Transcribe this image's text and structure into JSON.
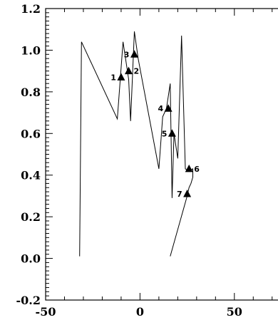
{
  "chart_data": {
    "type": "line",
    "title": "",
    "xlabel": "",
    "ylabel": "",
    "xlim": [
      -50,
      75
    ],
    "ylim": [
      -0.2,
      1.2
    ],
    "x_ticks": [
      -50,
      0,
      50
    ],
    "x_tick_labels": [
      "-50",
      "0",
      "50"
    ],
    "y_ticks": [
      -0.2,
      0.0,
      0.2,
      0.4,
      0.6,
      0.8,
      1.0,
      1.2
    ],
    "y_tick_labels": [
      "-0.2",
      "0.0",
      "0.2",
      "0.4",
      "0.6",
      "0.8",
      "1.0",
      "1.2"
    ],
    "grid": false,
    "series": [
      {
        "x": [
          -32,
          -31,
          -12,
          -9,
          -6,
          -5,
          -3,
          -1,
          10,
          12,
          14,
          16,
          17,
          18,
          20,
          22,
          24,
          26,
          28,
          28,
          27,
          26,
          25,
          16
        ],
        "y": [
          0.01,
          1.04,
          0.67,
          1.04,
          0.86,
          0.66,
          1.09,
          0.96,
          0.43,
          0.68,
          0.72,
          0.84,
          0.29,
          0.6,
          0.48,
          1.07,
          0.43,
          0.42,
          0.43,
          0.39,
          0.36,
          0.34,
          0.3,
          0.01
        ]
      }
    ],
    "markers": [
      {
        "label": "1",
        "x": -10,
        "y": 0.87
      },
      {
        "label": "2",
        "x": -6,
        "y": 0.9
      },
      {
        "label": "3",
        "x": -3,
        "y": 0.98
      },
      {
        "label": "4",
        "x": 15,
        "y": 0.72
      },
      {
        "label": "5",
        "x": 17,
        "y": 0.6
      },
      {
        "label": "6",
        "x": 26,
        "y": 0.43
      },
      {
        "label": "7",
        "x": 25,
        "y": 0.31
      }
    ]
  }
}
